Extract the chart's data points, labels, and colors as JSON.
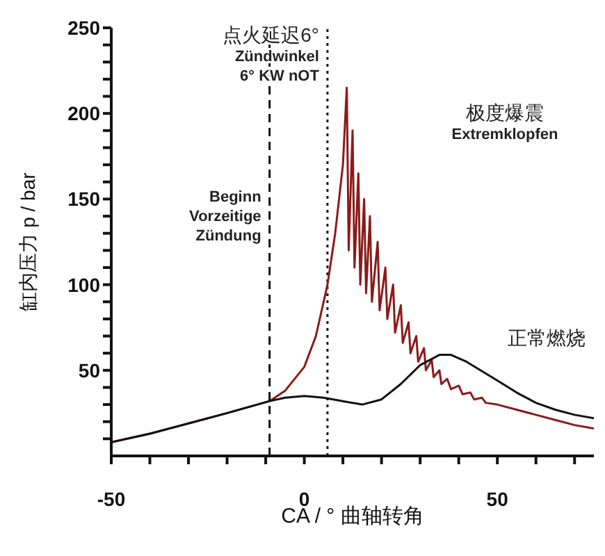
{
  "chart_data": {
    "type": "line",
    "xlabel": "CA / ° 曲轴转角",
    "ylabel": "缸内压力 p / bar",
    "xlim": [
      -50,
      75
    ],
    "xticks": [
      -50,
      {
        "value": -40,
        "label": null
      },
      {
        "value": -30,
        "label": null
      },
      {
        "value": -20,
        "label": null
      },
      {
        "value": -10,
        "label": null
      },
      0,
      {
        "value": 10,
        "label": null
      },
      {
        "value": 20,
        "label": null
      },
      {
        "value": 30,
        "label": null
      },
      {
        "value": 40,
        "label": null
      },
      50,
      {
        "value": 60,
        "label": null
      },
      {
        "value": 70,
        "label": null
      }
    ],
    "ylim": [
      0,
      250
    ],
    "yticks": [
      {
        "value": 10,
        "label": null
      },
      {
        "value": 20,
        "label": null
      },
      {
        "value": 30,
        "label": null
      },
      {
        "value": 40,
        "label": null
      },
      50,
      {
        "value": 60,
        "label": null
      },
      {
        "value": 70,
        "label": null
      },
      {
        "value": 80,
        "label": null
      },
      {
        "value": 90,
        "label": null
      },
      100,
      {
        "value": 110,
        "label": null
      },
      {
        "value": 120,
        "label": null
      },
      {
        "value": 130,
        "label": null
      },
      {
        "value": 140,
        "label": null
      },
      150,
      {
        "value": 160,
        "label": null
      },
      {
        "value": 170,
        "label": null
      },
      {
        "value": 180,
        "label": null
      },
      {
        "value": 190,
        "label": null
      },
      200,
      {
        "value": 210,
        "label": null
      },
      {
        "value": 220,
        "label": null
      },
      {
        "value": 230,
        "label": null
      },
      {
        "value": 240,
        "label": null
      },
      250
    ],
    "grid": false,
    "legend": false,
    "marker": "none",
    "line_style": "solid",
    "series": [
      {
        "color": "#8b1a1a",
        "x": [
          -50,
          -40,
          -30,
          -20,
          -9,
          -5,
          0,
          3,
          6,
          8,
          10,
          11,
          11.5,
          12.5,
          13,
          14,
          14.5,
          15.5,
          16,
          17,
          17.5,
          19,
          19.5,
          21,
          21.5,
          23,
          23.5,
          25,
          25.5,
          27,
          27.5,
          29,
          29.5,
          31,
          31.5,
          33,
          33.5,
          35,
          35.5,
          37,
          38,
          40,
          41,
          43,
          44,
          46,
          47,
          50,
          55,
          60,
          65,
          70,
          75
        ],
        "values": [
          8,
          13,
          19,
          25,
          32,
          38,
          52,
          70,
          100,
          130,
          170,
          215,
          120,
          190,
          110,
          165,
          100,
          150,
          95,
          140,
          90,
          125,
          85,
          110,
          80,
          100,
          72,
          88,
          66,
          78,
          60,
          70,
          55,
          63,
          50,
          56,
          46,
          50,
          42,
          45,
          39,
          41,
          36,
          37,
          33,
          34,
          31,
          30,
          27,
          24,
          21,
          18,
          16
        ]
      },
      {
        "color": "#111111",
        "x": [
          -50,
          -40,
          -30,
          -20,
          -9,
          -5,
          0,
          5,
          10,
          15,
          20,
          25,
          30,
          35,
          38,
          42,
          50,
          55,
          60,
          65,
          70,
          75
        ],
        "values": [
          8,
          13,
          19,
          25,
          32,
          34,
          35,
          34,
          32,
          30,
          33,
          42,
          53,
          59,
          59,
          55,
          44,
          37,
          31,
          27,
          24,
          22
        ]
      }
    ],
    "ref_lines": [
      {
        "axis": "x",
        "value": -9,
        "label": "Beginn\nVorzeitige\nZündung",
        "line_style": "dashed",
        "color": "#111111"
      },
      {
        "axis": "x",
        "value": 6,
        "label": "点火延迟6°\nZündwinkel\n6° KW nOT",
        "line_style": "dotted",
        "color": "#111111"
      }
    ],
    "annotations": [
      "极度爆震\nExtremklopfen",
      "正常燃烧"
    ]
  }
}
